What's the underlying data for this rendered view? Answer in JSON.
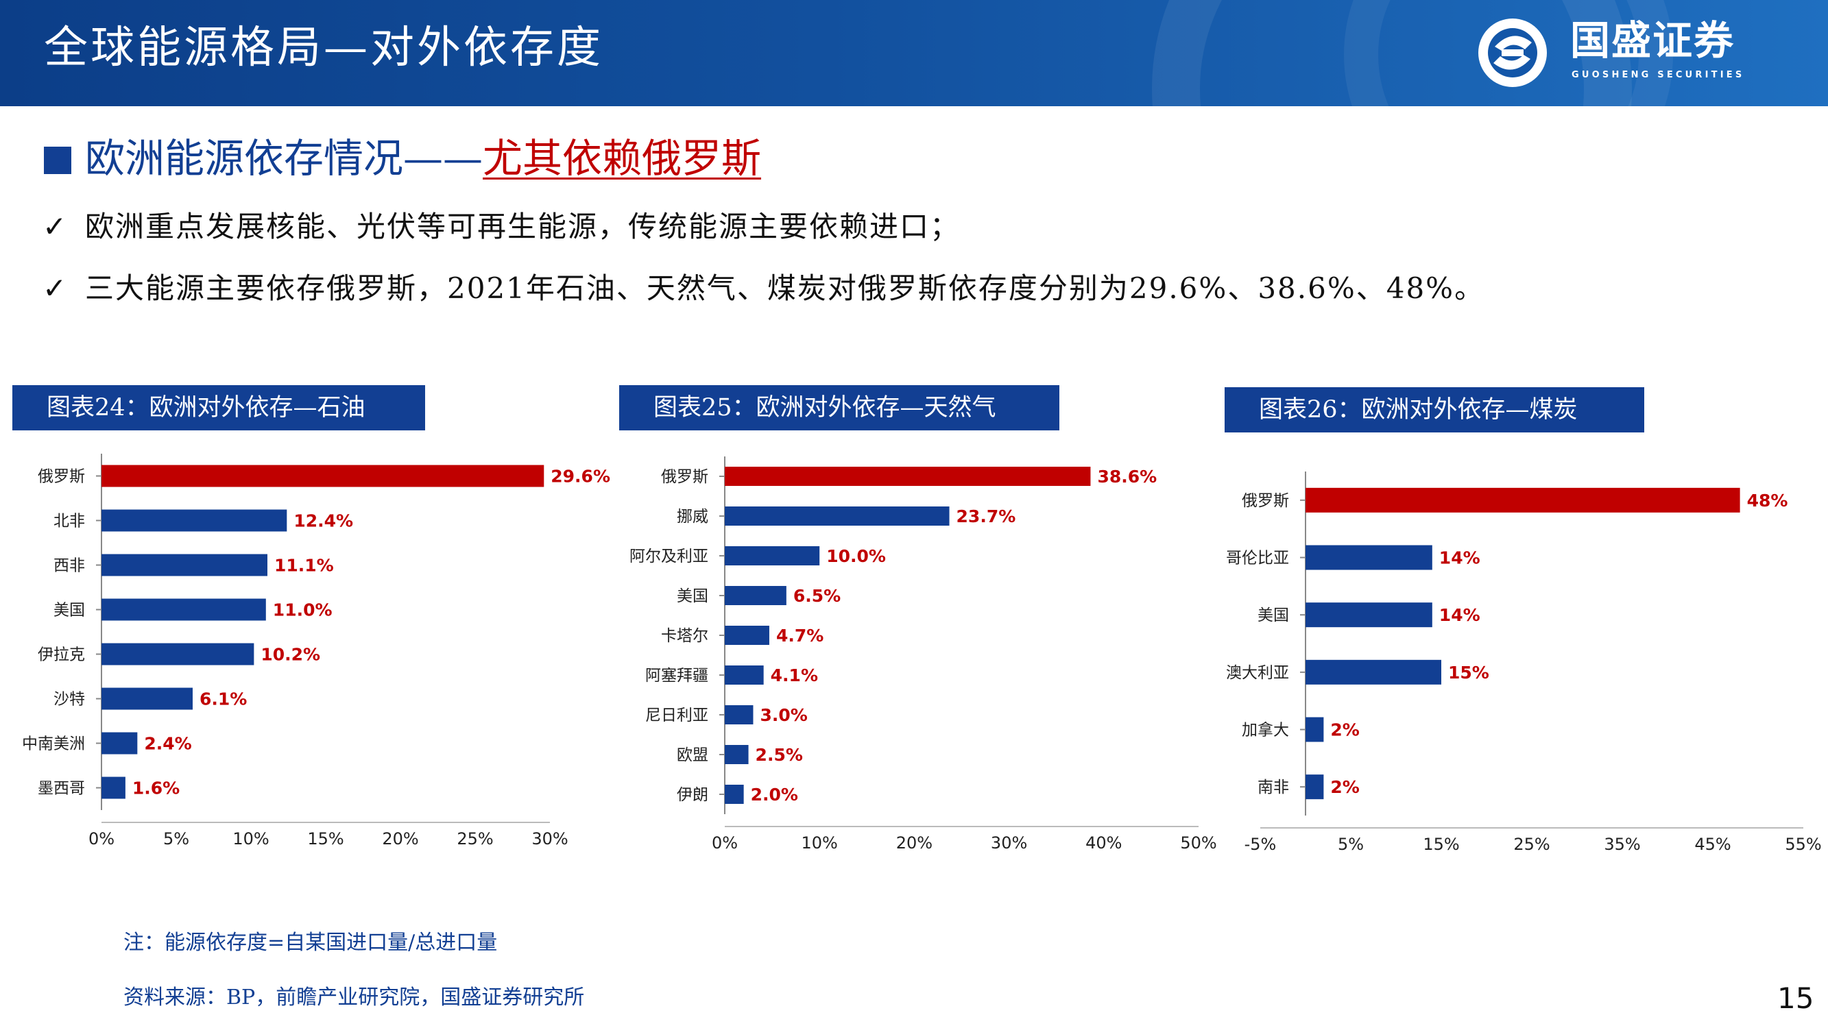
{
  "header": {
    "title": "全球能源格局—对外依存度",
    "logo_name": "国盛证券",
    "logo_sub": "GUOSHENG SECURITIES"
  },
  "section": {
    "head_main": "欧洲能源依存情况——",
    "head_em": "尤其依赖俄罗斯"
  },
  "points": [
    {
      "tick": "✓",
      "text": "欧洲重点发展核能、光伏等可再生能源，传统能源主要依赖进口；"
    },
    {
      "tick": "✓",
      "text": "三大能源主要依存俄罗斯，2021年石油、天然气、煤炭对俄罗斯依存度分别为29.6%、38.6%、48%。"
    }
  ],
  "chart_data": [
    {
      "type": "bar",
      "orientation": "horizontal",
      "title": "图表24：欧洲对外依存—石油",
      "categories": [
        "俄罗斯",
        "北非",
        "西非",
        "美国",
        "伊拉克",
        "沙特",
        "中南美洲",
        "墨西哥"
      ],
      "values": [
        29.6,
        12.4,
        11.1,
        11.0,
        10.2,
        6.1,
        2.4,
        1.6
      ],
      "value_labels": [
        "29.6%",
        "12.4%",
        "11.1%",
        "11.0%",
        "10.2%",
        "6.1%",
        "2.4%",
        "1.6%"
      ],
      "xlim": [
        0,
        30
      ],
      "ticks": [
        0,
        5,
        10,
        15,
        20,
        25,
        30
      ],
      "tick_labels": [
        "0%",
        "5%",
        "10%",
        "15%",
        "20%",
        "25%",
        "30%"
      ],
      "highlight_color": "#c00000",
      "bar_color": "#123f93"
    },
    {
      "type": "bar",
      "orientation": "horizontal",
      "title": "图表25：欧洲对外依存—天然气",
      "categories": [
        "俄罗斯",
        "挪威",
        "阿尔及利亚",
        "美国",
        "卡塔尔",
        "阿塞拜疆",
        "尼日利亚",
        "欧盟",
        "伊朗"
      ],
      "values": [
        38.6,
        23.7,
        10.0,
        6.5,
        4.7,
        4.1,
        3.0,
        2.5,
        2.0
      ],
      "value_labels": [
        "38.6%",
        "23.7%",
        "10.0%",
        "6.5%",
        "4.7%",
        "4.1%",
        "3.0%",
        "2.5%",
        "2.0%"
      ],
      "xlim": [
        0,
        50
      ],
      "ticks": [
        0,
        10,
        20,
        30,
        40,
        50
      ],
      "tick_labels": [
        "0%",
        "10%",
        "20%",
        "30%",
        "40%",
        "50%"
      ],
      "highlight_color": "#c00000",
      "bar_color": "#123f93"
    },
    {
      "type": "bar",
      "orientation": "horizontal",
      "title": "图表26：欧洲对外依存—煤炭",
      "categories": [
        "俄罗斯",
        "哥伦比亚",
        "美国",
        "澳大利亚",
        "加拿大",
        "南非"
      ],
      "values": [
        48,
        14,
        14,
        15,
        2,
        2
      ],
      "value_labels": [
        "48%",
        "14%",
        "14%",
        "15%",
        "2%",
        "2%"
      ],
      "xlim": [
        -5,
        55
      ],
      "ticks": [
        -5,
        5,
        15,
        25,
        35,
        45,
        55
      ],
      "tick_labels": [
        "-5%",
        "5%",
        "15%",
        "25%",
        "35%",
        "45%",
        "55%"
      ],
      "highlight_color": "#c00000",
      "bar_color": "#123f93"
    }
  ],
  "notes": {
    "note": "注：能源依存度=自某国进口量/总进口量",
    "source": "资料来源：BP，前瞻产业研究院，国盛证券研究所"
  },
  "page_number": "15"
}
